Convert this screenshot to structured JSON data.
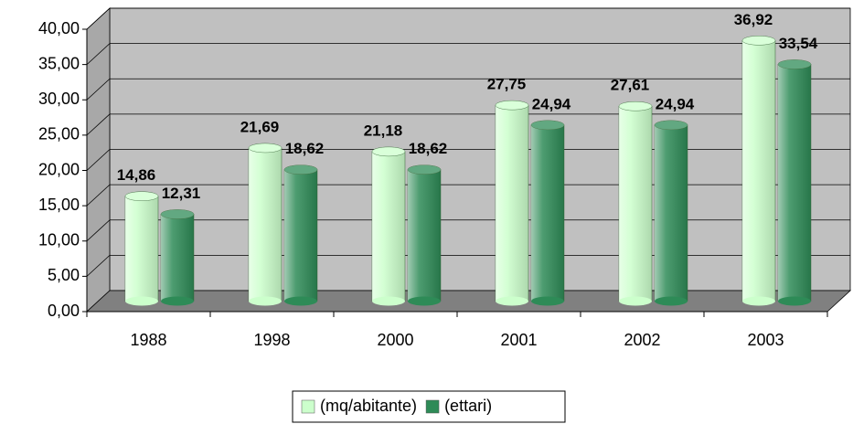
{
  "chart_data": {
    "type": "bar3d",
    "categories": [
      "1988",
      "1998",
      "2000",
      "2001",
      "2002",
      "2003"
    ],
    "series": [
      {
        "name": "(mq/abitante)",
        "color": "#ccffcc",
        "values": [
          14.86,
          21.69,
          21.18,
          27.75,
          27.61,
          36.92
        ],
        "value_labels": [
          "14,86",
          "21,69",
          "21,18",
          "27,75",
          "27,61",
          "36,92"
        ]
      },
      {
        "name": "(ettari)",
        "color": "#2e8b57",
        "values": [
          12.31,
          18.62,
          18.62,
          24.94,
          24.94,
          33.54
        ],
        "value_labels": [
          "12,31",
          "18,62",
          "18,62",
          "24,94",
          "24,94",
          "33,54"
        ]
      }
    ],
    "ylim": [
      0,
      40
    ],
    "yticks": [
      {
        "value": 0,
        "label": "0,00"
      },
      {
        "value": 5,
        "label": "5,00"
      },
      {
        "value": 10,
        "label": "10,00"
      },
      {
        "value": 15,
        "label": "15,00"
      },
      {
        "value": 20,
        "label": "20,00"
      },
      {
        "value": 25,
        "label": "25,00"
      },
      {
        "value": 30,
        "label": "30,00"
      },
      {
        "value": 35,
        "label": "35,00"
      },
      {
        "value": 40,
        "label": "40,00"
      }
    ],
    "grid": true,
    "legend": "bottom"
  }
}
